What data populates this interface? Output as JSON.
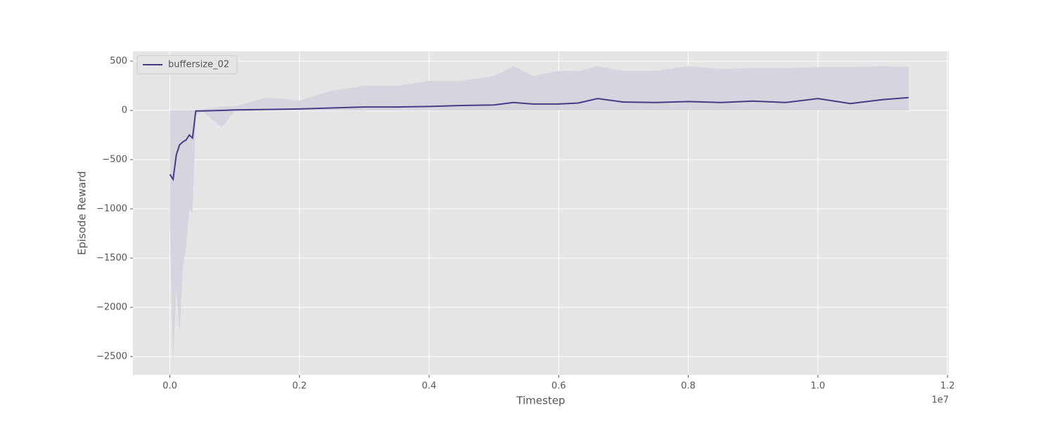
{
  "chart_data": {
    "type": "line",
    "xlabel": "Timestep",
    "ylabel": "Episode Reward",
    "x_offset_label": "1e7",
    "xlim": [
      -570000,
      12020000
    ],
    "ylim": [
      -2686,
      600
    ],
    "xticks": [
      {
        "value": 0,
        "label": "0.0"
      },
      {
        "value": 2000000,
        "label": "0.2"
      },
      {
        "value": 4000000,
        "label": "0.4"
      },
      {
        "value": 6000000,
        "label": "0.6"
      },
      {
        "value": 8000000,
        "label": "0.8"
      },
      {
        "value": 10000000,
        "label": "1.0"
      },
      {
        "value": 12000000,
        "label": "1.2"
      }
    ],
    "yticks": [
      {
        "value": -2500,
        "label": "−2500"
      },
      {
        "value": -2000,
        "label": "−2000"
      },
      {
        "value": -1500,
        "label": "−1500"
      },
      {
        "value": -1000,
        "label": "−1000"
      },
      {
        "value": -500,
        "label": "−500"
      },
      0,
      500
    ],
    "grid": true,
    "legend": "upper left",
    "series": [
      {
        "name": "buffersize_02",
        "color": "#433d86",
        "band_color": "#d5d4df",
        "x": [
          0,
          50000,
          100000,
          150000,
          200000,
          250000,
          300000,
          350000,
          400000,
          500000,
          800000,
          1000000,
          1500000,
          2000000,
          2500000,
          3000000,
          3500000,
          4000000,
          4500000,
          5000000,
          5300000,
          5600000,
          6000000,
          6300000,
          6600000,
          7000000,
          7500000,
          8000000,
          8500000,
          9000000,
          9500000,
          10000000,
          10500000,
          11000000,
          11400000
        ],
        "values": [
          -650,
          -700,
          -450,
          -350,
          -320,
          -300,
          -250,
          -280,
          -5,
          -5,
          0,
          5,
          10,
          15,
          25,
          35,
          35,
          40,
          50,
          55,
          80,
          65,
          65,
          75,
          120,
          85,
          80,
          90,
          80,
          95,
          80,
          120,
          70,
          110,
          130
        ],
        "upper": [
          0,
          0,
          0,
          0,
          0,
          0,
          0,
          0,
          0,
          10,
          40,
          40,
          130,
          100,
          200,
          250,
          250,
          300,
          300,
          350,
          450,
          350,
          400,
          400,
          450,
          400,
          400,
          450,
          420,
          430,
          430,
          440,
          440,
          450,
          440
        ],
        "lower": [
          -1200,
          -2550,
          -1800,
          -2250,
          -1600,
          -1400,
          -1000,
          -1050,
          -50,
          -10,
          -170,
          -10,
          0,
          0,
          0,
          0,
          0,
          0,
          0,
          0,
          0,
          0,
          0,
          0,
          0,
          0,
          0,
          0,
          0,
          0,
          0,
          0,
          0,
          0,
          0
        ]
      }
    ]
  }
}
